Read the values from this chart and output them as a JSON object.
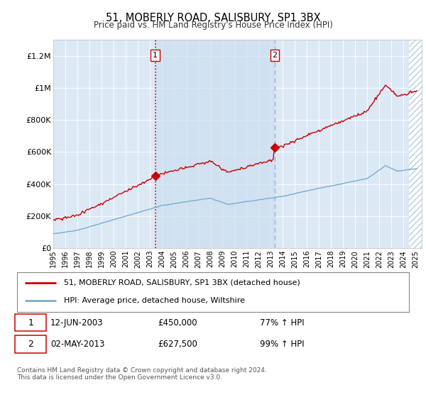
{
  "title": "51, MOBERLY ROAD, SALISBURY, SP1 3BX",
  "subtitle": "Price paid vs. HM Land Registry's House Price Index (HPI)",
  "legend_line1": "51, MOBERLY ROAD, SALISBURY, SP1 3BX (detached house)",
  "legend_line2": "HPI: Average price, detached house, Wiltshire",
  "annotation1": {
    "label": "1",
    "date": "12-JUN-2003",
    "price": 450000,
    "hpi": "77% ↑ HPI"
  },
  "annotation2": {
    "label": "2",
    "date": "02-MAY-2013",
    "price": 627500,
    "hpi": "99% ↑ HPI"
  },
  "footnote": "Contains HM Land Registry data © Crown copyright and database right 2024.\nThis data is licensed under the Open Government Licence v3.0.",
  "sale1_x": 2003.44,
  "sale1_y": 450000,
  "sale2_x": 2013.33,
  "sale2_y": 627500,
  "background_color": "#ffffff",
  "plot_bg_color": "#dce9f5",
  "shade_bg_color": "#c8dcf0",
  "red_line_color": "#cc0000",
  "blue_line_color": "#7aadcc",
  "vline1_color": "#cc0000",
  "vline2_color": "#aaaacc",
  "annotation_box_edge": "#cc0000",
  "ylim_max": 1300000,
  "xlim_start": 1995.0,
  "xlim_end": 2025.5,
  "yticks": [
    0,
    200000,
    400000,
    600000,
    800000,
    1000000,
    1200000
  ],
  "ylabels": [
    "£0",
    "£200K",
    "£400K",
    "£600K",
    "£800K",
    "£1M",
    "£1.2M"
  ]
}
